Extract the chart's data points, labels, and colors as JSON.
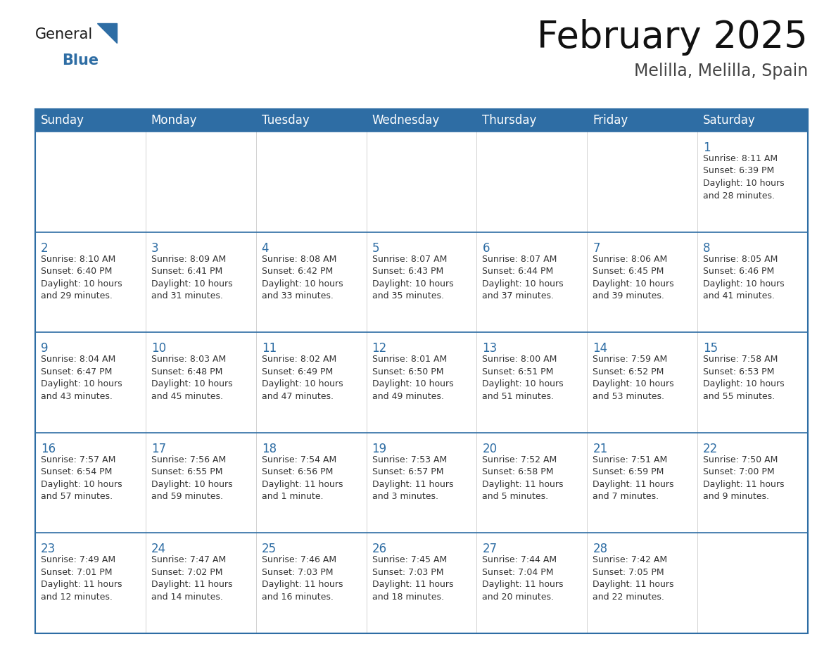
{
  "title": "February 2025",
  "subtitle": "Melilla, Melilla, Spain",
  "header_color": "#2E6DA4",
  "header_text_color": "#FFFFFF",
  "cell_bg_color": "#FFFFFF",
  "cell_alt_bg_color": "#F2F2F2",
  "border_color": "#2E6DA4",
  "row_border_color": "#2E6DA4",
  "col_border_color": "#CCCCCC",
  "text_color": "#333333",
  "day_number_color": "#2E6DA4",
  "days_of_week": [
    "Sunday",
    "Monday",
    "Tuesday",
    "Wednesday",
    "Thursday",
    "Friday",
    "Saturday"
  ],
  "weeks": [
    [
      {
        "day": null,
        "info": null
      },
      {
        "day": null,
        "info": null
      },
      {
        "day": null,
        "info": null
      },
      {
        "day": null,
        "info": null
      },
      {
        "day": null,
        "info": null
      },
      {
        "day": null,
        "info": null
      },
      {
        "day": 1,
        "info": "Sunrise: 8:11 AM\nSunset: 6:39 PM\nDaylight: 10 hours\nand 28 minutes."
      }
    ],
    [
      {
        "day": 2,
        "info": "Sunrise: 8:10 AM\nSunset: 6:40 PM\nDaylight: 10 hours\nand 29 minutes."
      },
      {
        "day": 3,
        "info": "Sunrise: 8:09 AM\nSunset: 6:41 PM\nDaylight: 10 hours\nand 31 minutes."
      },
      {
        "day": 4,
        "info": "Sunrise: 8:08 AM\nSunset: 6:42 PM\nDaylight: 10 hours\nand 33 minutes."
      },
      {
        "day": 5,
        "info": "Sunrise: 8:07 AM\nSunset: 6:43 PM\nDaylight: 10 hours\nand 35 minutes."
      },
      {
        "day": 6,
        "info": "Sunrise: 8:07 AM\nSunset: 6:44 PM\nDaylight: 10 hours\nand 37 minutes."
      },
      {
        "day": 7,
        "info": "Sunrise: 8:06 AM\nSunset: 6:45 PM\nDaylight: 10 hours\nand 39 minutes."
      },
      {
        "day": 8,
        "info": "Sunrise: 8:05 AM\nSunset: 6:46 PM\nDaylight: 10 hours\nand 41 minutes."
      }
    ],
    [
      {
        "day": 9,
        "info": "Sunrise: 8:04 AM\nSunset: 6:47 PM\nDaylight: 10 hours\nand 43 minutes."
      },
      {
        "day": 10,
        "info": "Sunrise: 8:03 AM\nSunset: 6:48 PM\nDaylight: 10 hours\nand 45 minutes."
      },
      {
        "day": 11,
        "info": "Sunrise: 8:02 AM\nSunset: 6:49 PM\nDaylight: 10 hours\nand 47 minutes."
      },
      {
        "day": 12,
        "info": "Sunrise: 8:01 AM\nSunset: 6:50 PM\nDaylight: 10 hours\nand 49 minutes."
      },
      {
        "day": 13,
        "info": "Sunrise: 8:00 AM\nSunset: 6:51 PM\nDaylight: 10 hours\nand 51 minutes."
      },
      {
        "day": 14,
        "info": "Sunrise: 7:59 AM\nSunset: 6:52 PM\nDaylight: 10 hours\nand 53 minutes."
      },
      {
        "day": 15,
        "info": "Sunrise: 7:58 AM\nSunset: 6:53 PM\nDaylight: 10 hours\nand 55 minutes."
      }
    ],
    [
      {
        "day": 16,
        "info": "Sunrise: 7:57 AM\nSunset: 6:54 PM\nDaylight: 10 hours\nand 57 minutes."
      },
      {
        "day": 17,
        "info": "Sunrise: 7:56 AM\nSunset: 6:55 PM\nDaylight: 10 hours\nand 59 minutes."
      },
      {
        "day": 18,
        "info": "Sunrise: 7:54 AM\nSunset: 6:56 PM\nDaylight: 11 hours\nand 1 minute."
      },
      {
        "day": 19,
        "info": "Sunrise: 7:53 AM\nSunset: 6:57 PM\nDaylight: 11 hours\nand 3 minutes."
      },
      {
        "day": 20,
        "info": "Sunrise: 7:52 AM\nSunset: 6:58 PM\nDaylight: 11 hours\nand 5 minutes."
      },
      {
        "day": 21,
        "info": "Sunrise: 7:51 AM\nSunset: 6:59 PM\nDaylight: 11 hours\nand 7 minutes."
      },
      {
        "day": 22,
        "info": "Sunrise: 7:50 AM\nSunset: 7:00 PM\nDaylight: 11 hours\nand 9 minutes."
      }
    ],
    [
      {
        "day": 23,
        "info": "Sunrise: 7:49 AM\nSunset: 7:01 PM\nDaylight: 11 hours\nand 12 minutes."
      },
      {
        "day": 24,
        "info": "Sunrise: 7:47 AM\nSunset: 7:02 PM\nDaylight: 11 hours\nand 14 minutes."
      },
      {
        "day": 25,
        "info": "Sunrise: 7:46 AM\nSunset: 7:03 PM\nDaylight: 11 hours\nand 16 minutes."
      },
      {
        "day": 26,
        "info": "Sunrise: 7:45 AM\nSunset: 7:03 PM\nDaylight: 11 hours\nand 18 minutes."
      },
      {
        "day": 27,
        "info": "Sunrise: 7:44 AM\nSunset: 7:04 PM\nDaylight: 11 hours\nand 20 minutes."
      },
      {
        "day": 28,
        "info": "Sunrise: 7:42 AM\nSunset: 7:05 PM\nDaylight: 11 hours\nand 22 minutes."
      },
      {
        "day": null,
        "info": null
      }
    ]
  ],
  "logo_general_color": "#1a1a1a",
  "logo_blue_color": "#2E6DA4",
  "title_fontsize": 38,
  "subtitle_fontsize": 17,
  "header_fontsize": 12,
  "day_number_fontsize": 12,
  "info_fontsize": 9
}
